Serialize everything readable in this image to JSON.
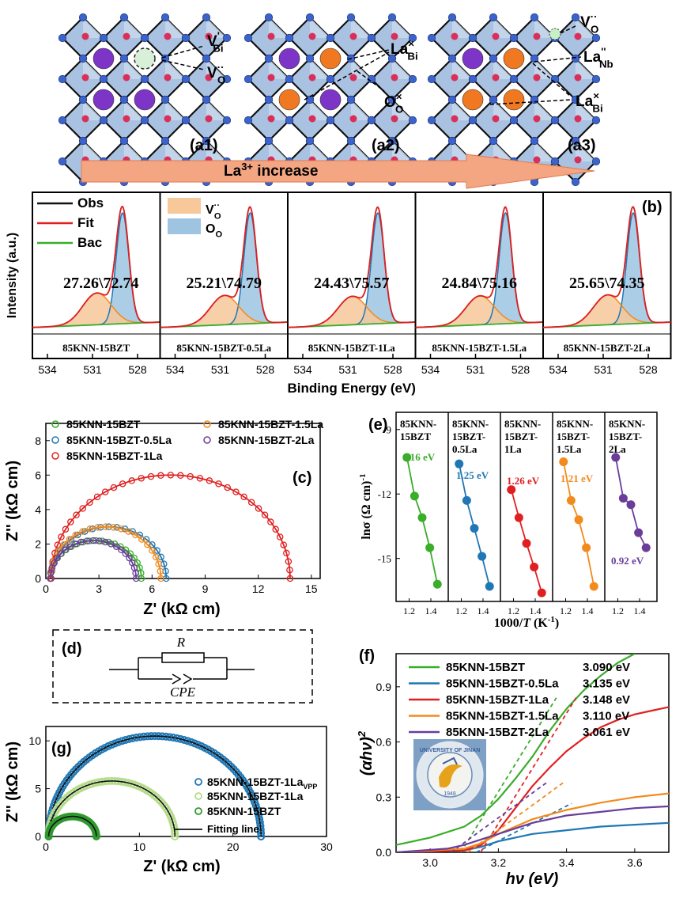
{
  "panel_labels": {
    "a1": "(a1)",
    "a2": "(a2)",
    "a3": "(a3)",
    "b": "(b)",
    "c": "(c)",
    "d": "(d)",
    "e": "(e)",
    "f": "(f)",
    "g": "(g)"
  },
  "crystal": {
    "arrow_text": "La",
    "arrow_sup": "3+",
    "arrow_tail": " increase",
    "a1_labels": [
      {
        "main": "V",
        "sub": "Bi",
        "sup": "'"
      },
      {
        "main": "V",
        "sub": "O",
        "sup": "··"
      }
    ],
    "a2_labels": [
      {
        "main": "La",
        "sub": "Bi",
        "sup": "×"
      },
      {
        "main": "O",
        "sub": "O",
        "sup": "×"
      }
    ],
    "a3_labels": [
      {
        "main": "V",
        "sub": "O",
        "sup": "··"
      },
      {
        "main": "La",
        "sub": "Nb",
        "sup": "''"
      },
      {
        "main": "La",
        "sub": "Bi",
        "sup": "×"
      }
    ]
  },
  "colors": {
    "green": "#3aad2a",
    "blue": "#1f77b4",
    "red": "#e02020",
    "orange": "#f28a1c",
    "purple": "#6a3d9a",
    "peach": "#f6c89a",
    "lightblue": "#9ec4e2",
    "arrow": "#f4a582"
  },
  "chart_data": [
    {
      "id": "b",
      "type": "area",
      "title": "",
      "xlabel": "Binding Energy (eV)",
      "ylabel": "Intensity (a.u.)",
      "xlim": [
        535,
        526.5
      ],
      "xticks": [
        534,
        531,
        528
      ],
      "legend": [
        {
          "name": "Obs"
        },
        {
          "name": "Fit"
        },
        {
          "name": "Bac"
        }
      ],
      "legend2": [
        {
          "main": "V",
          "sub": "O",
          "sup": "··"
        },
        {
          "main": "O",
          "sub": "O",
          "sup": ""
        }
      ],
      "subpanels": [
        {
          "sample": "85KNN-15BZT",
          "ratio": "27.26\\72.74",
          "vo_percent": 27.26,
          "oo_percent": 72.74
        },
        {
          "sample": "85KNN-15BZT-0.5La",
          "ratio": "25.21\\74.79",
          "vo_percent": 25.21,
          "oo_percent": 74.79
        },
        {
          "sample": "85KNN-15BZT-1La",
          "ratio": "24.43\\75.57",
          "vo_percent": 24.43,
          "oo_percent": 75.57
        },
        {
          "sample": "85KNN-15BZT-1.5La",
          "ratio": "24.84\\75.16",
          "vo_percent": 24.84,
          "oo_percent": 75.16
        },
        {
          "sample": "85KNN-15BZT-2La",
          "ratio": "25.65\\74.35",
          "vo_percent": 25.65,
          "oo_percent": 74.35
        }
      ],
      "peaks": {
        "oo_center": 529.0,
        "vo_center": 530.7
      }
    },
    {
      "id": "c",
      "type": "scatter",
      "xlabel": "Z' (kΩ cm)",
      "ylabel": "Z'' (kΩ cm)",
      "xlim": [
        0,
        15.5
      ],
      "ylim": [
        0,
        9
      ],
      "xticks": [
        0,
        3,
        6,
        9,
        12,
        15
      ],
      "yticks": [
        0,
        2,
        4,
        6,
        8
      ],
      "series": [
        {
          "name": "85KNN-15BZT",
          "color": "green",
          "start": 0.25,
          "end": 5.4,
          "peak": 2.2
        },
        {
          "name": "85KNN-15BZT-0.5La",
          "color": "blue",
          "start": 0.3,
          "end": 6.8,
          "peak": 3.0
        },
        {
          "name": "85KNN-15BZT-1La",
          "color": "red",
          "start": 0.3,
          "end": 13.8,
          "peak": 6.0
        },
        {
          "name": "85KNN-15BZT-1.5La",
          "color": "orange",
          "start": 0.25,
          "end": 6.5,
          "peak": 3.0
        },
        {
          "name": "85KNN-15BZT-2La",
          "color": "purple",
          "start": 0.25,
          "end": 5.1,
          "peak": 2.2
        }
      ]
    },
    {
      "id": "d",
      "type": "diagram",
      "labels": {
        "r": "R",
        "cpe": "CPE"
      }
    },
    {
      "id": "e",
      "type": "scatter",
      "xlabel_main": "1000/",
      "xlabel_var": "T",
      "xlabel_unit": " (K",
      "xlabel_sup": "-1",
      "xlabel_close": ")",
      "ylabel_main": "lnσ (Ω cm)",
      "ylabel_sup": "-1",
      "ylim": [
        -17,
        -8.2
      ],
      "yticks": [
        -9,
        -12,
        -15
      ],
      "xlim": [
        1.08,
        1.56
      ],
      "xticks": [
        1.2,
        1.4
      ],
      "subpanels": [
        {
          "sample": [
            "85KNN-",
            "15BZT"
          ],
          "ea": "1.16 eV",
          "color": "green",
          "x": [
            1.18,
            1.25,
            1.32,
            1.39,
            1.46
          ],
          "y": [
            -10.3,
            -12.1,
            -13.1,
            -14.5,
            -16.2
          ]
        },
        {
          "sample": [
            "85KNN-",
            "15BZT-",
            "0.5La"
          ],
          "ea": "1.25 eV",
          "color": "blue",
          "x": [
            1.18,
            1.25,
            1.32,
            1.39,
            1.46
          ],
          "y": [
            -10.6,
            -12.3,
            -13.6,
            -14.9,
            -16.3
          ]
        },
        {
          "sample": [
            "85KNN-",
            "15BZT-",
            "1La"
          ],
          "ea": "1.26 eV",
          "color": "red",
          "x": [
            1.18,
            1.25,
            1.32,
            1.39,
            1.46
          ],
          "y": [
            -11.8,
            -13.1,
            -14.3,
            -15.4,
            -16.6
          ]
        },
        {
          "sample": [
            "85KNN-",
            "15BZT-",
            "1.5La"
          ],
          "ea": "1.21 eV",
          "color": "orange",
          "x": [
            1.18,
            1.25,
            1.32,
            1.39,
            1.46
          ],
          "y": [
            -10.5,
            -12.3,
            -13.2,
            -14.5,
            -16.3
          ]
        },
        {
          "sample": [
            "85KNN-",
            "15BZT-",
            "2La"
          ],
          "ea": "0.92 eV",
          "color": "purple",
          "x": [
            1.18,
            1.25,
            1.32,
            1.39,
            1.46
          ],
          "y": [
            -10.3,
            -12.2,
            -12.5,
            -13.8,
            -14.5
          ]
        }
      ]
    },
    {
      "id": "f",
      "type": "line",
      "xlabel": "hν (eV)",
      "ylabel": "(αhν)",
      "ylabel_sup": "2",
      "xlim": [
        2.9,
        3.7
      ],
      "ylim": [
        0,
        1.08
      ],
      "xticks": [
        3.0,
        3.2,
        3.4,
        3.6
      ],
      "yticks": [
        0.0,
        0.3,
        0.6,
        0.9
      ],
      "series": [
        {
          "name": "85KNN-15BZT",
          "eg": "3.090 eV",
          "color": "green",
          "x": [
            2.9,
            3.0,
            3.1,
            3.15,
            3.2,
            3.25,
            3.3,
            3.35,
            3.4,
            3.45,
            3.5,
            3.55,
            3.6
          ],
          "y": [
            0.04,
            0.08,
            0.14,
            0.2,
            0.29,
            0.4,
            0.52,
            0.66,
            0.78,
            0.88,
            0.96,
            1.03,
            1.08
          ]
        },
        {
          "name": "85KNN-15BZT-0.5La",
          "eg": "3.135 eV",
          "color": "blue",
          "x": [
            2.9,
            3.1,
            3.15,
            3.2,
            3.25,
            3.3,
            3.4,
            3.5,
            3.6,
            3.7
          ],
          "y": [
            0.0,
            0.01,
            0.03,
            0.06,
            0.08,
            0.1,
            0.12,
            0.14,
            0.15,
            0.16
          ]
        },
        {
          "name": "85KNN-15BZT-1La",
          "eg": "3.148 eV",
          "color": "red",
          "x": [
            2.9,
            3.1,
            3.15,
            3.2,
            3.25,
            3.3,
            3.35,
            3.4,
            3.45,
            3.5,
            3.55,
            3.6,
            3.65,
            3.7
          ],
          "y": [
            0.0,
            0.01,
            0.04,
            0.12,
            0.24,
            0.36,
            0.46,
            0.55,
            0.62,
            0.68,
            0.72,
            0.75,
            0.77,
            0.79
          ]
        },
        {
          "name": "85KNN-15BZT-1.5La",
          "eg": "3.110 eV",
          "color": "orange",
          "x": [
            2.9,
            3.1,
            3.15,
            3.2,
            3.25,
            3.3,
            3.4,
            3.5,
            3.6,
            3.7
          ],
          "y": [
            0.0,
            0.02,
            0.05,
            0.1,
            0.14,
            0.18,
            0.23,
            0.27,
            0.3,
            0.32
          ]
        },
        {
          "name": "85KNN-15BZT-2La",
          "eg": "3.061 eV",
          "color": "purple",
          "x": [
            2.9,
            3.05,
            3.1,
            3.15,
            3.2,
            3.25,
            3.3,
            3.4,
            3.5,
            3.6,
            3.7
          ],
          "y": [
            0.0,
            0.02,
            0.04,
            0.07,
            0.1,
            0.13,
            0.16,
            0.2,
            0.22,
            0.24,
            0.25
          ]
        }
      ]
    },
    {
      "id": "g",
      "type": "scatter",
      "xlabel": "Z' (kΩ cm)",
      "ylabel": "Z'' (kΩ cm)",
      "xlim": [
        0,
        30
      ],
      "ylim": [
        0,
        11.5
      ],
      "xticks": [
        0,
        10,
        20,
        30
      ],
      "yticks": [
        0,
        5,
        10
      ],
      "series": [
        {
          "name": "85KNN-15BZT-1La",
          "sub": "VPP",
          "color": "blue",
          "start": 0.3,
          "end": 23.0,
          "peak": 10.5
        },
        {
          "name": "85KNN-15BZT-1La",
          "sub": "",
          "color": "lightgreen",
          "start": 0.3,
          "end": 13.8,
          "peak": 5.8
        },
        {
          "name": "85KNN-15BZT",
          "sub": "",
          "color": "darkgreen",
          "start": 0.3,
          "end": 5.4,
          "peak": 2.1
        }
      ],
      "fit_label": "Fitting line"
    }
  ],
  "inset_logo": {
    "text": "UNIVERSITY OF JINAN",
    "year": "1948"
  }
}
